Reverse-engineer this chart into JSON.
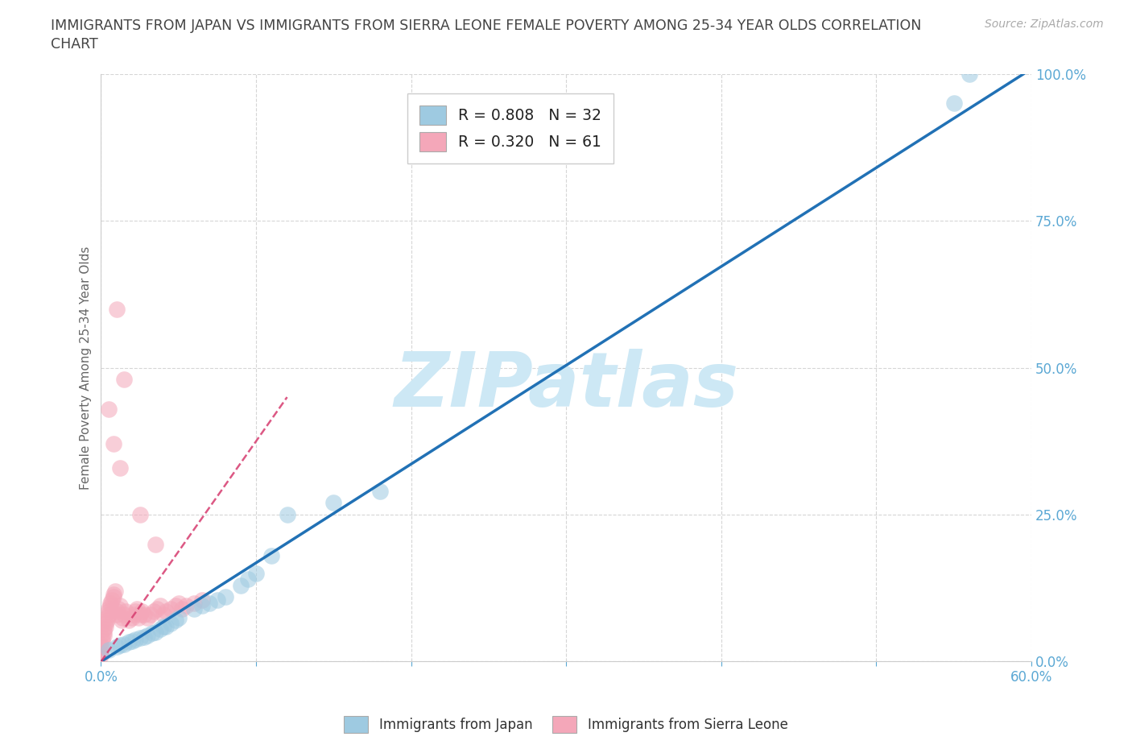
{
  "title_line1": "IMMIGRANTS FROM JAPAN VS IMMIGRANTS FROM SIERRA LEONE FEMALE POVERTY AMONG 25-34 YEAR OLDS CORRELATION",
  "title_line2": "CHART",
  "source": "Source: ZipAtlas.com",
  "ylabel": "Female Poverty Among 25-34 Year Olds",
  "xlim": [
    0.0,
    0.6
  ],
  "ylim": [
    0.0,
    1.0
  ],
  "xtick_vals": [
    0.0,
    0.1,
    0.2,
    0.3,
    0.4,
    0.5,
    0.6
  ],
  "ytick_vals": [
    0.0,
    0.25,
    0.5,
    0.75,
    1.0
  ],
  "legend_japan": "R = 0.808   N = 32",
  "legend_sierra": "R = 0.320   N = 61",
  "japan_color": "#9ecae1",
  "sierra_color": "#f4a7b9",
  "japan_trend_color": "#2171b5",
  "sierra_trend_color": "#d63b6e",
  "watermark_color": "#cde8f5",
  "background_color": "#ffffff",
  "grid_color": "#cccccc",
  "axis_label_color": "#5ba8d4",
  "title_color": "#444444",
  "japan_x": [
    0.005,
    0.01,
    0.012,
    0.015,
    0.018,
    0.02,
    0.022,
    0.025,
    0.028,
    0.03,
    0.033,
    0.035,
    0.038,
    0.04,
    0.042,
    0.045,
    0.048,
    0.05,
    0.06,
    0.065,
    0.07,
    0.075,
    0.08,
    0.09,
    0.095,
    0.1,
    0.11,
    0.12,
    0.15,
    0.18,
    0.55,
    0.56
  ],
  "japan_y": [
    0.02,
    0.025,
    0.028,
    0.03,
    0.033,
    0.035,
    0.038,
    0.04,
    0.042,
    0.045,
    0.048,
    0.05,
    0.055,
    0.06,
    0.06,
    0.065,
    0.07,
    0.075,
    0.09,
    0.095,
    0.1,
    0.105,
    0.11,
    0.13,
    0.14,
    0.15,
    0.18,
    0.25,
    0.27,
    0.29,
    0.95,
    1.0
  ],
  "sierra_x": [
    0.0,
    0.0,
    0.0,
    0.0,
    0.0,
    0.001,
    0.001,
    0.002,
    0.002,
    0.002,
    0.003,
    0.003,
    0.004,
    0.004,
    0.005,
    0.005,
    0.005,
    0.006,
    0.006,
    0.007,
    0.008,
    0.008,
    0.009,
    0.01,
    0.01,
    0.011,
    0.012,
    0.013,
    0.014,
    0.015,
    0.016,
    0.018,
    0.02,
    0.021,
    0.022,
    0.023,
    0.024,
    0.025,
    0.026,
    0.028,
    0.03,
    0.032,
    0.034,
    0.036,
    0.038,
    0.04,
    0.042,
    0.045,
    0.048,
    0.05,
    0.052,
    0.055,
    0.06,
    0.065,
    0.01,
    0.015,
    0.005,
    0.008,
    0.012,
    0.025,
    0.035
  ],
  "sierra_y": [
    0.01,
    0.015,
    0.02,
    0.025,
    0.03,
    0.035,
    0.04,
    0.045,
    0.05,
    0.055,
    0.06,
    0.065,
    0.07,
    0.075,
    0.08,
    0.085,
    0.09,
    0.095,
    0.1,
    0.105,
    0.11,
    0.115,
    0.12,
    0.08,
    0.085,
    0.09,
    0.095,
    0.07,
    0.075,
    0.08,
    0.085,
    0.07,
    0.075,
    0.08,
    0.085,
    0.09,
    0.075,
    0.08,
    0.085,
    0.08,
    0.075,
    0.08,
    0.085,
    0.09,
    0.095,
    0.08,
    0.085,
    0.09,
    0.095,
    0.1,
    0.09,
    0.095,
    0.1,
    0.105,
    0.6,
    0.48,
    0.43,
    0.37,
    0.33,
    0.25,
    0.2
  ],
  "japan_trend_x": [
    0.0,
    0.595
  ],
  "japan_trend_y": [
    0.0,
    1.0
  ],
  "sierra_trend_x": [
    0.0,
    0.12
  ],
  "sierra_trend_y": [
    0.0,
    0.45
  ]
}
